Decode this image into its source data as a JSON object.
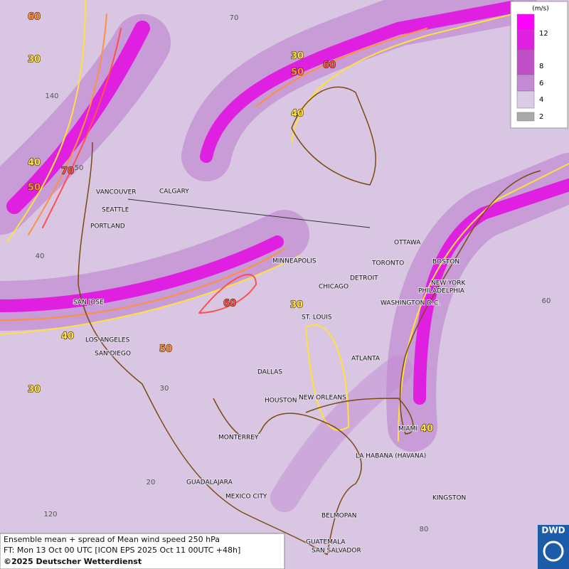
{
  "map": {
    "cities": [
      "VANCOUVER",
      "CALGARY",
      "SEATTLE",
      "PORTLAND",
      "MINNEAPOLIS",
      "OTTAWA",
      "TORONTO",
      "DETROIT",
      "BOSTON",
      "CHICAGO",
      "NEW YORK",
      "PHILADELPHIA",
      "WASHINGTON D.C.",
      "SAN JOSE",
      "ST. LOUIS",
      "LOS ANGELES",
      "SAN DIEGO",
      "ATLANTA",
      "DALLAS",
      "HOUSTON",
      "NEW ORLEANS",
      "MIAMI",
      "MONTERREY",
      "LA HABANA (HAVANA)",
      "GUADALAJARA",
      "MEXICO CITY",
      "KINGSTON",
      "BELMOPAN",
      "GUATEMALA",
      "SAN SALVADOR"
    ],
    "contour_labels": [
      60,
      30,
      30,
      50,
      60,
      40,
      40,
      70,
      50,
      60,
      30,
      40,
      50,
      30,
      40
    ],
    "grid_labels": [
      70,
      140,
      50,
      40,
      30,
      20,
      120,
      60,
      80
    ]
  },
  "legend": {
    "unit": "(m/s)",
    "levels": [
      12,
      8,
      6,
      4,
      2
    ]
  },
  "caption": {
    "line1": "Ensemble mean + spread of Mean wind speed 250 hPa",
    "line2": "FT: Mon 13 Oct 00 UTC [ICON EPS 2025 Oct 11 00UTC +48h]",
    "line3": "©2025 Deutscher Wetterdienst"
  },
  "logo": "DWD"
}
